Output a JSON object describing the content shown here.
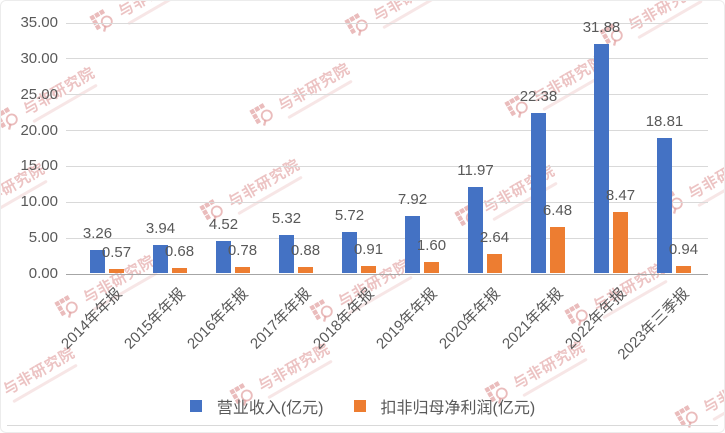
{
  "watermark": {
    "text": "与非研究院"
  },
  "chart_data": {
    "type": "bar",
    "title": "",
    "categories": [
      "2014年年报",
      "2015年年报",
      "2016年年报",
      "2017年年报",
      "2018年年报",
      "2019年年报",
      "2020年年报",
      "2021年年报",
      "2022年年报",
      "2023年三季报"
    ],
    "series": [
      {
        "name": "营业收入(亿元)",
        "color": "#4472C4",
        "values": [
          3.26,
          3.94,
          4.52,
          5.32,
          5.72,
          7.92,
          11.97,
          22.38,
          31.88,
          18.81
        ]
      },
      {
        "name": "扣非归母净利润(亿元)",
        "color": "#ED7D31",
        "values": [
          0.57,
          0.68,
          0.78,
          0.88,
          0.91,
          1.6,
          2.64,
          6.48,
          8.47,
          0.94
        ]
      }
    ],
    "xlabel": "",
    "ylabel": "",
    "ylim": [
      0,
      35
    ],
    "y_tick_step": 5,
    "y_tick_labels": [
      "0.00",
      "5.00",
      "10.00",
      "15.00",
      "20.00",
      "25.00",
      "30.00",
      "35.00"
    ],
    "value_label_decimals": 2,
    "grid": true,
    "legend_position": "bottom",
    "colors": {
      "data_label": "#595959",
      "axis_label": "#595959",
      "gridline": "#d9d9d9",
      "axis_line": "#a6a6a6",
      "watermark": "#c75050"
    }
  }
}
